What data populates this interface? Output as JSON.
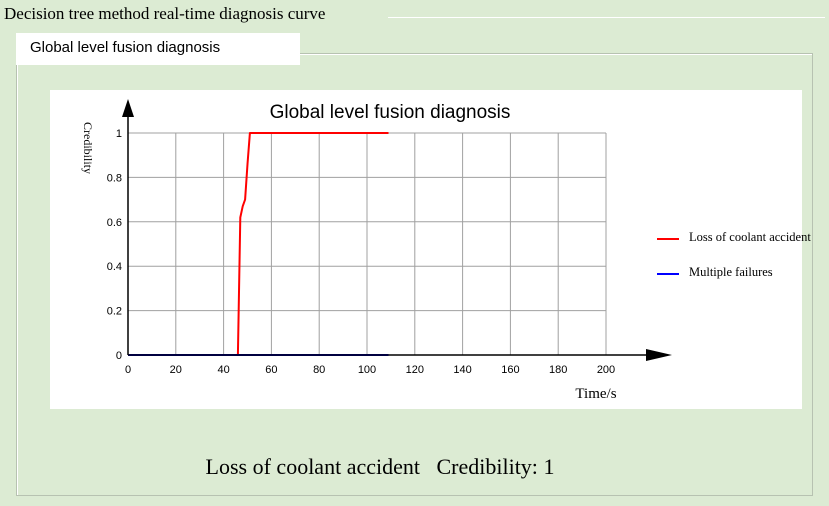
{
  "window": {
    "title": "Decision tree method real-time diagnosis curve",
    "tab_label": "Global level fusion diagnosis"
  },
  "status": {
    "diagnosis": "Loss of coolant accident",
    "credibility_label": "Credibility:",
    "credibility_value": "1"
  },
  "chart_data": {
    "type": "line",
    "title": "Global level fusion diagnosis",
    "xlabel": "Time/s",
    "ylabel": "Credibility",
    "xlim": [
      0,
      200
    ],
    "ylim": [
      0,
      1
    ],
    "x_ticks": [
      0,
      20,
      40,
      60,
      80,
      100,
      120,
      140,
      160,
      180,
      200
    ],
    "y_ticks": [
      0,
      0.2,
      0.4,
      0.6,
      0.8,
      1
    ],
    "y_tick_labels": [
      "0",
      "0.2",
      "0.4",
      "0.6",
      "0.8",
      "1"
    ],
    "grid": true,
    "legend_position": "right",
    "series": [
      {
        "name": "Loss of coolant accident",
        "color": "#ff0000",
        "x": [
          0,
          46,
          47,
          48,
          49,
          50,
          51,
          109
        ],
        "y": [
          0,
          0,
          0.62,
          0.67,
          0.7,
          0.86,
          1,
          1
        ]
      },
      {
        "name": "Multiple failures",
        "color": "#0000ff",
        "x": [
          0,
          109
        ],
        "y": [
          0,
          0
        ]
      }
    ]
  }
}
